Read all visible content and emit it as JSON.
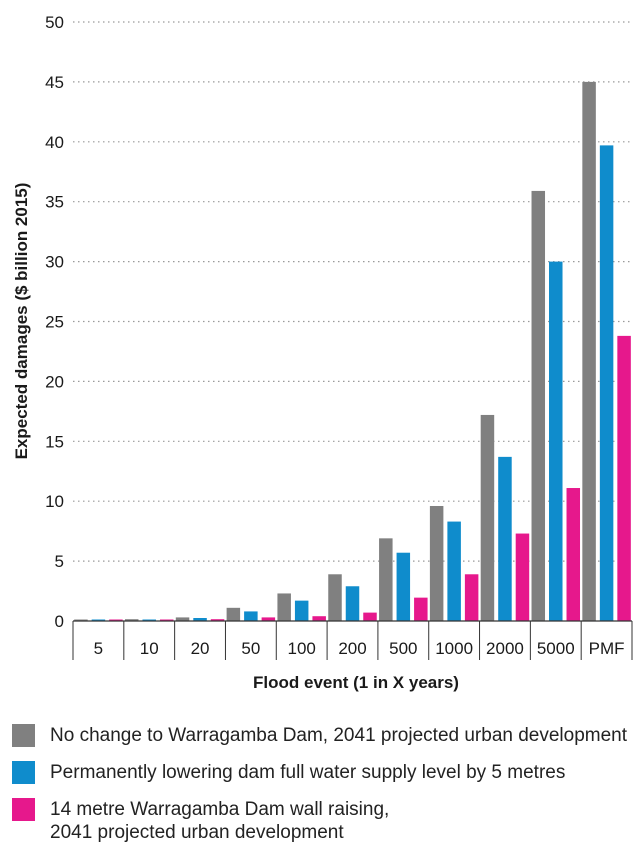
{
  "chart_data": {
    "type": "bar",
    "title": "",
    "xlabel": "Flood event (1 in X years)",
    "ylabel": "Expected damages ($ billion 2015)",
    "ylim": [
      0,
      50
    ],
    "yticks": [
      0,
      5,
      10,
      15,
      20,
      25,
      30,
      35,
      40,
      45,
      50
    ],
    "grid": "horizontal dotted",
    "legend_placement": "bottom",
    "categories": [
      "5",
      "10",
      "20",
      "50",
      "100",
      "200",
      "500",
      "1000",
      "2000",
      "5000",
      "PMF"
    ],
    "series": [
      {
        "name": "No change to Warragamba Dam, 2041 projected urban development",
        "color": "#808080",
        "values": [
          0.1,
          0.15,
          0.3,
          1.1,
          2.3,
          3.9,
          6.9,
          9.6,
          17.2,
          35.9,
          45.0
        ]
      },
      {
        "name": "Permanently lowering dam full water supply level by 5 metres",
        "color": "#0f8ccc",
        "values": [
          0.1,
          0.12,
          0.25,
          0.8,
          1.7,
          2.9,
          5.7,
          8.3,
          13.7,
          30.0,
          39.7
        ]
      },
      {
        "name": "14 metre Warragamba Dam wall raising, 2041 projected urban development",
        "color": "#e6188c",
        "values": [
          0.08,
          0.1,
          0.15,
          0.3,
          0.4,
          0.7,
          1.95,
          3.9,
          7.3,
          11.1,
          23.8
        ]
      }
    ]
  },
  "legend": {
    "items": [
      {
        "color": "#808080",
        "lines": [
          "No change to Warragamba Dam, 2041 projected urban development"
        ]
      },
      {
        "color": "#0f8ccc",
        "lines": [
          "Permanently lowering dam full water supply level by 5 metres"
        ]
      },
      {
        "color": "#e6188c",
        "lines": [
          "14 metre Warragamba Dam wall raising,",
          "2041 projected urban development"
        ]
      }
    ]
  }
}
